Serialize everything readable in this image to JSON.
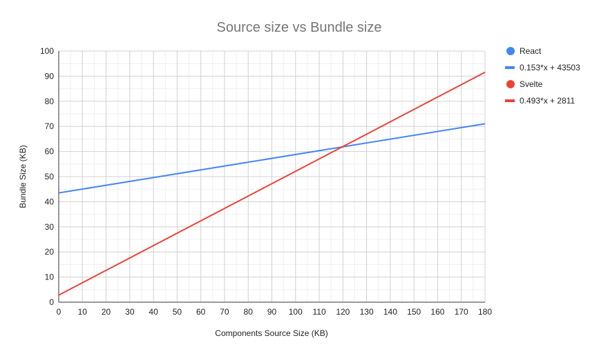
{
  "chart_data": {
    "type": "scatter",
    "title": "Source size vs Bundle size",
    "xlabel": "Components Source Size (KB)",
    "ylabel": "Bundle Size (KB)",
    "xlim": [
      0,
      180
    ],
    "ylim": [
      0,
      100
    ],
    "xticks": [
      0,
      10,
      20,
      30,
      40,
      50,
      60,
      70,
      80,
      90,
      100,
      110,
      120,
      130,
      140,
      150,
      160,
      170,
      180
    ],
    "yticks": [
      0,
      10,
      20,
      30,
      40,
      50,
      60,
      70,
      80,
      90,
      100
    ],
    "grid": true,
    "legend_position": "right",
    "series": [
      {
        "name": "React",
        "color": "#4285f4",
        "marker": "circle",
        "trendline": {
          "label": "0.153*x + 43503",
          "slope": 0.153,
          "intercept": 43.503
        }
      },
      {
        "name": "Svelte",
        "color": "#ea4335",
        "marker": "circle",
        "trendline": {
          "label": "0.493*x + 2811",
          "slope": 0.493,
          "intercept": 2.811
        }
      }
    ]
  }
}
